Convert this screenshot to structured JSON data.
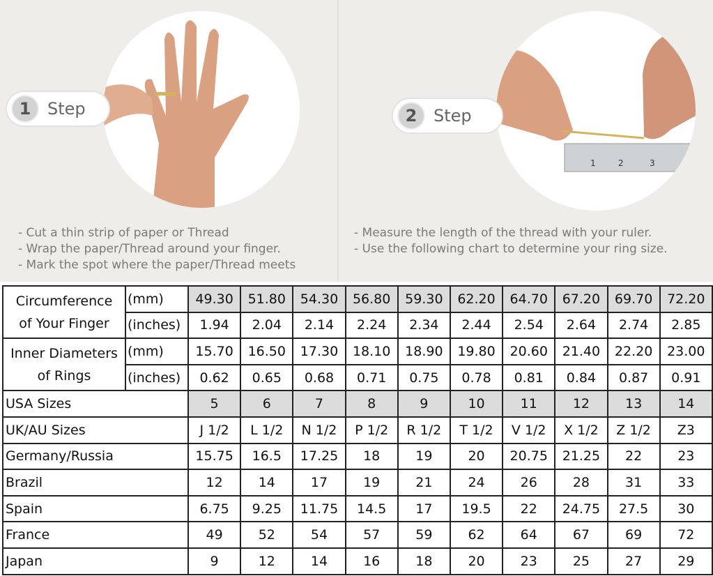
{
  "steps": [
    {
      "number": "1",
      "label": "Step",
      "instructions": [
        "- Cut a thin strip of paper or Thread",
        "- Wrap the paper/Thread around your finger.",
        "- Mark the spot where the paper/Thread meets"
      ]
    },
    {
      "number": "2",
      "label": "Step",
      "instructions": [
        "- Measure the length of the thread with your ruler.",
        "- Use the following chart to determine your ring size."
      ]
    }
  ],
  "ruler_marks": [
    "1",
    "2",
    "3"
  ],
  "table": {
    "circumference": {
      "label_line1": "Circumference",
      "label_line2": "of Your Finger",
      "mm_unit": "(mm)",
      "mm": [
        "49.30",
        "51.80",
        "54.30",
        "56.80",
        "59.30",
        "62.20",
        "64.70",
        "67.20",
        "69.70",
        "72.20"
      ],
      "in_unit": "(inches)",
      "in": [
        "1.94",
        "2.04",
        "2.14",
        "2.24",
        "2.34",
        "2.44",
        "2.54",
        "2.64",
        "2.74",
        "2.85"
      ]
    },
    "inner_diameter": {
      "label_line1": "Inner Diameters",
      "label_line2": "of Rings",
      "mm_unit": "(mm)",
      "mm": [
        "15.70",
        "16.50",
        "17.30",
        "18.10",
        "18.90",
        "19.80",
        "20.60",
        "21.40",
        "22.20",
        "23.00"
      ],
      "in_unit": "(inches)",
      "in": [
        "0.62",
        "0.65",
        "0.68",
        "0.71",
        "0.75",
        "0.78",
        "0.81",
        "0.84",
        "0.87",
        "0.91"
      ]
    },
    "rows": [
      {
        "label": "USA Sizes",
        "values": [
          "5",
          "6",
          "7",
          "8",
          "9",
          "10",
          "11",
          "12",
          "13",
          "14"
        ],
        "highlight": true
      },
      {
        "label": "UK/AU Sizes",
        "values": [
          "J 1/2",
          "L 1/2",
          "N 1/2",
          "P 1/2",
          "R 1/2",
          "T 1/2",
          "V 1/2",
          "X 1/2",
          "Z 1/2",
          "Z3"
        ]
      },
      {
        "label": "Germany/Russia",
        "values": [
          "15.75",
          "16.5",
          "17.25",
          "18",
          "19",
          "20",
          "20.75",
          "21.25",
          "22",
          "23"
        ]
      },
      {
        "label": "Brazil",
        "values": [
          "12",
          "14",
          "17",
          "19",
          "21",
          "24",
          "26",
          "28",
          "31",
          "33"
        ]
      },
      {
        "label": "Spain",
        "values": [
          "6.75",
          "9.25",
          "11.75",
          "14.5",
          "17",
          "19.5",
          "22",
          "24.75",
          "27.5",
          "30"
        ]
      },
      {
        "label": "France",
        "values": [
          "49",
          "52",
          "54",
          "57",
          "59",
          "62",
          "64",
          "67",
          "69",
          "72"
        ]
      },
      {
        "label": "Japan",
        "values": [
          "9",
          "12",
          "14",
          "16",
          "18",
          "20",
          "23",
          "25",
          "27",
          "29"
        ]
      }
    ]
  },
  "colors": {
    "highlight": "#dcdcdc",
    "background": "#efedea",
    "skin": "#d9a082"
  }
}
